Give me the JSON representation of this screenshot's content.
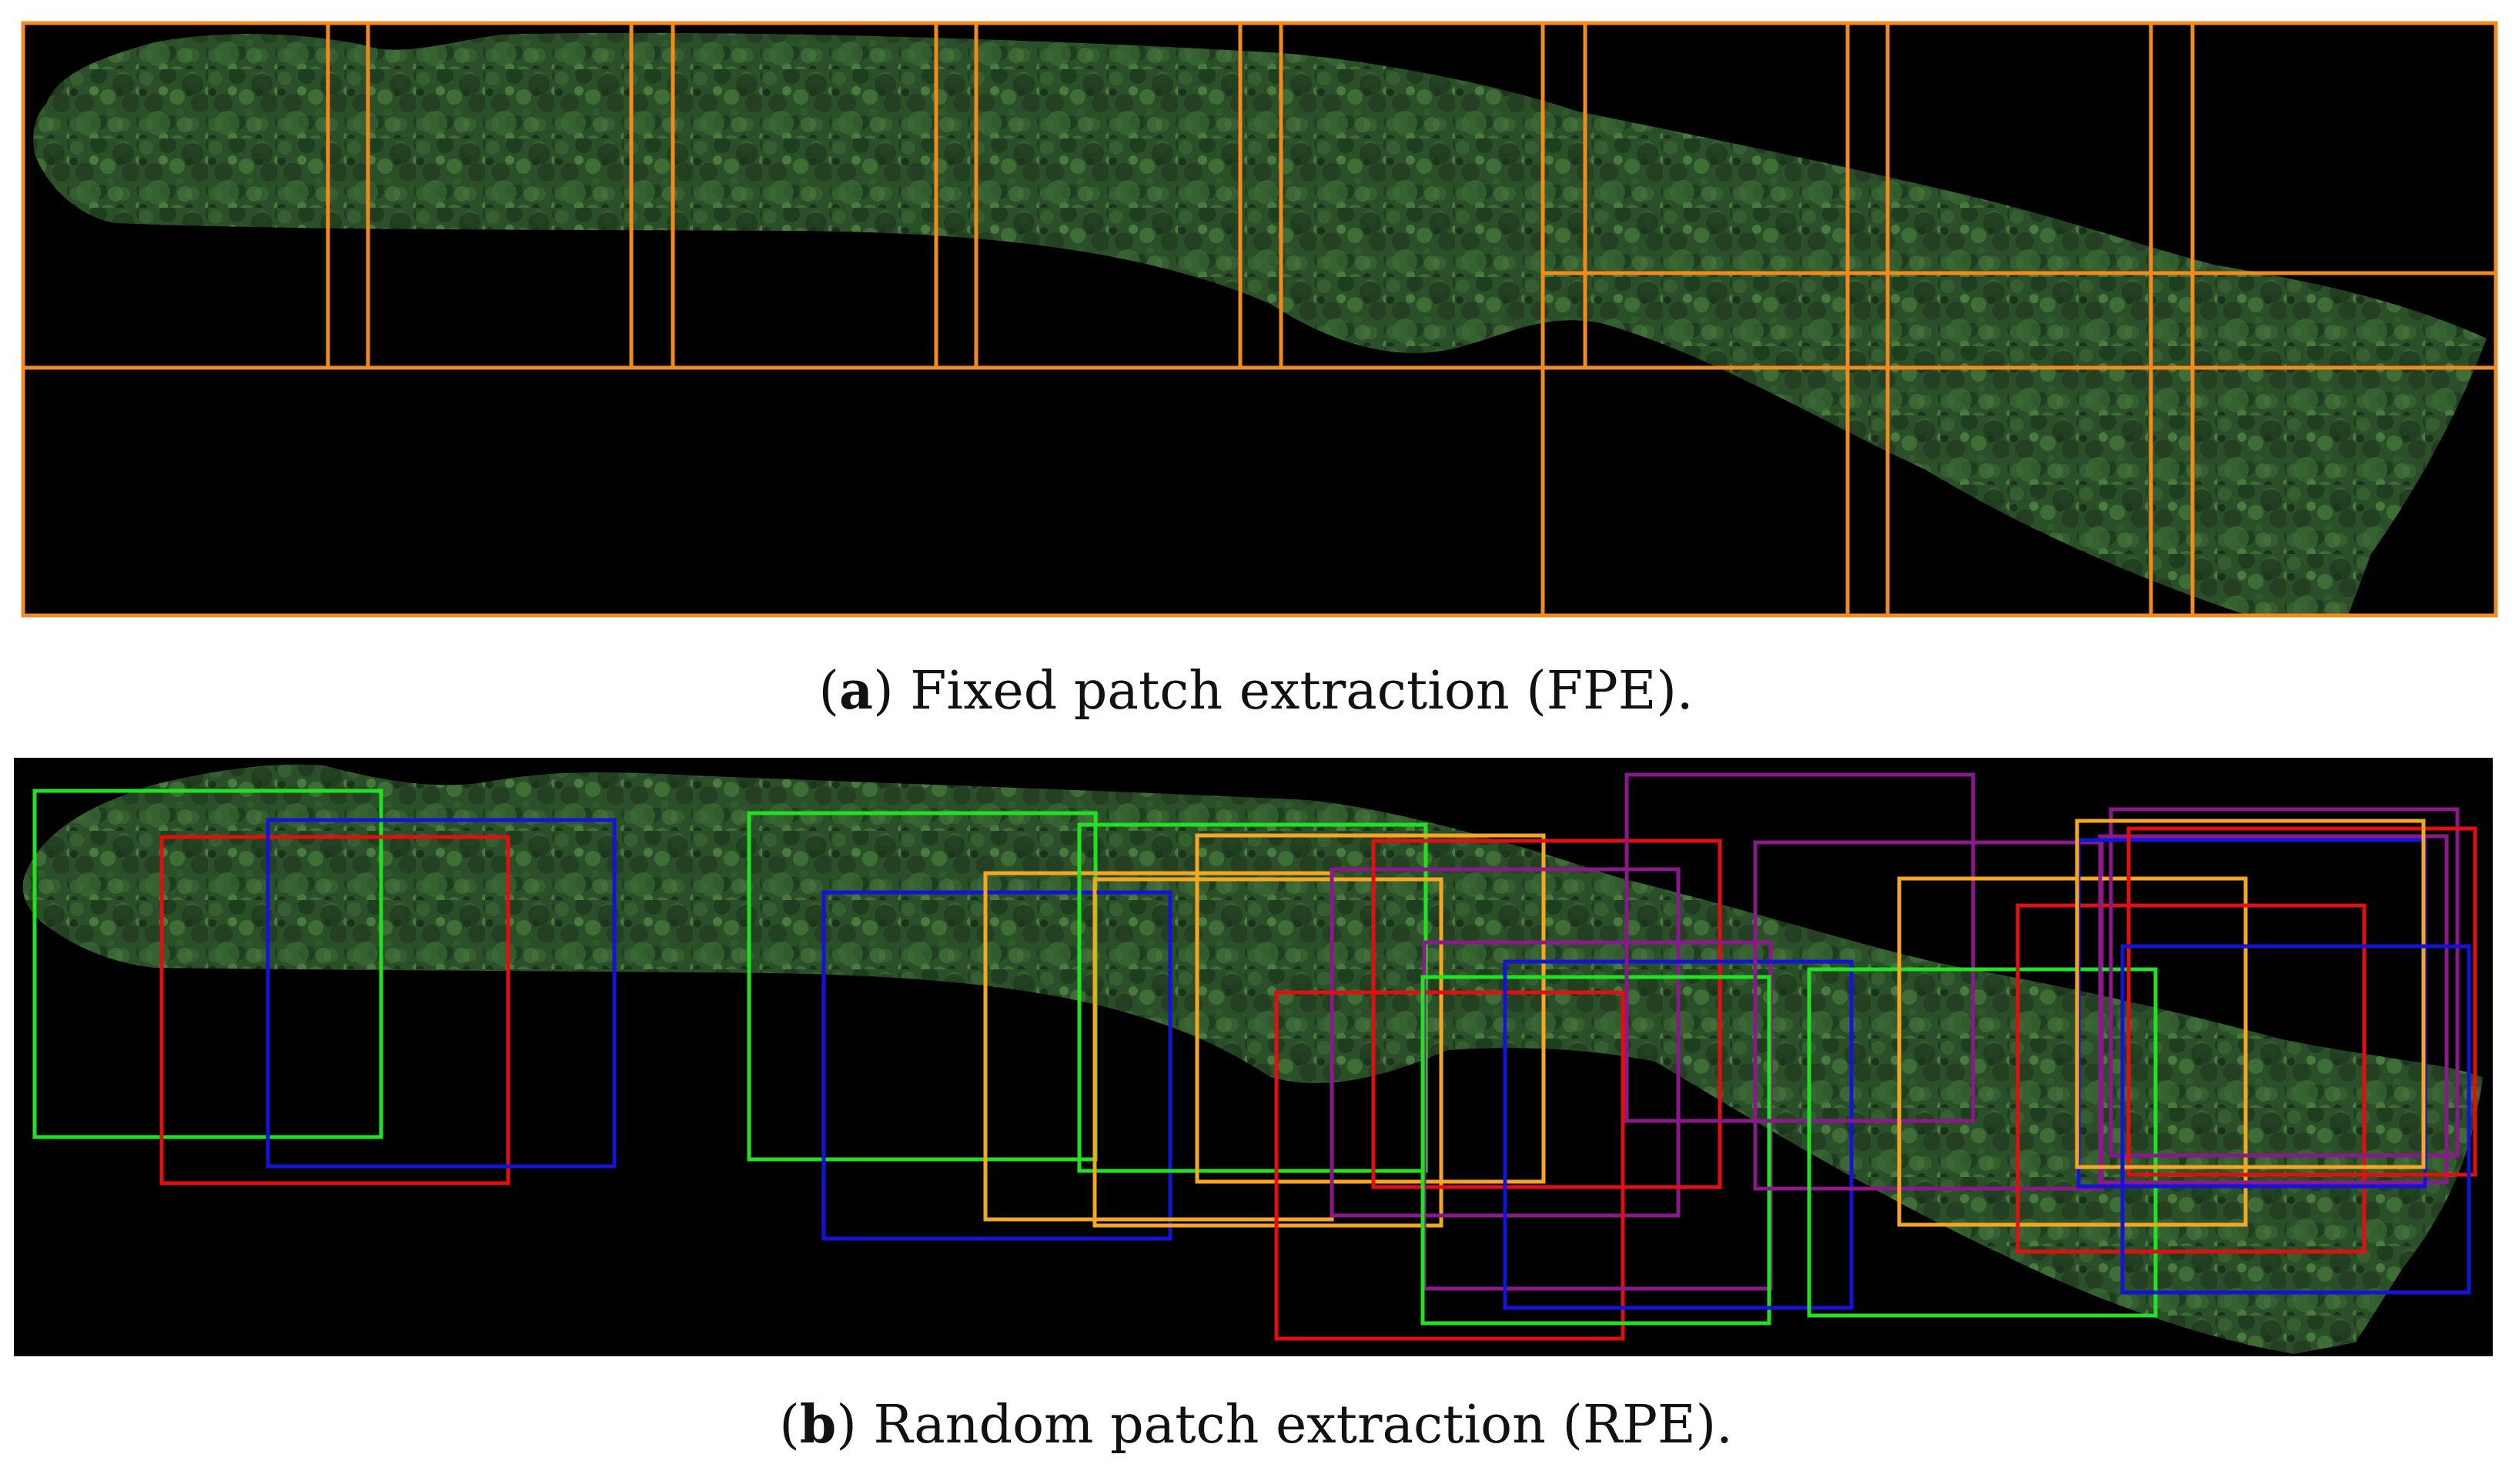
{
  "figure": {
    "panel_a": {
      "letter": "a",
      "caption": "Fixed patch extraction (FPE).",
      "box_color": "#f28a1e"
    },
    "panel_b": {
      "letter": "b",
      "caption": "Random patch extraction (RPE).",
      "box_colors": {
        "green": "#22e022",
        "red": "#e01010",
        "blue": "#1414d8",
        "orange": "#f5a623",
        "purple": "#8a1a8a"
      }
    },
    "imagery": {
      "background": "#000000",
      "vegetation_dark": "#1f3a1f",
      "vegetation_mid": "#2f5a2c",
      "vegetation_light": "#4c7a3e"
    }
  }
}
